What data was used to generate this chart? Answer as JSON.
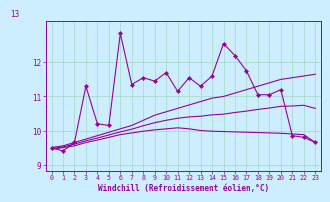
{
  "hours": [
    0,
    1,
    2,
    3,
    4,
    5,
    6,
    7,
    8,
    9,
    10,
    11,
    12,
    13,
    14,
    15,
    16,
    17,
    18,
    19,
    20,
    21,
    22,
    23
  ],
  "windchill": [
    9.5,
    9.4,
    9.65,
    11.3,
    10.2,
    10.15,
    12.85,
    11.35,
    11.55,
    11.45,
    11.7,
    11.15,
    11.55,
    11.3,
    11.6,
    12.55,
    12.2,
    11.75,
    11.05,
    11.05,
    11.2,
    9.85,
    9.8,
    9.65
  ],
  "trend_upper": [
    9.5,
    9.55,
    9.65,
    9.75,
    9.85,
    9.95,
    10.05,
    10.15,
    10.3,
    10.45,
    10.55,
    10.65,
    10.75,
    10.85,
    10.95,
    11.0,
    11.1,
    11.2,
    11.3,
    11.4,
    11.5,
    11.55,
    11.6,
    11.65
  ],
  "trend_lower": [
    9.45,
    9.5,
    9.55,
    9.65,
    9.72,
    9.8,
    9.88,
    9.93,
    9.98,
    10.02,
    10.05,
    10.08,
    10.05,
    10.0,
    9.98,
    9.97,
    9.96,
    9.95,
    9.94,
    9.93,
    9.92,
    9.9,
    9.88,
    9.65
  ],
  "trend_mid": [
    9.47,
    9.52,
    9.6,
    9.7,
    9.78,
    9.87,
    9.96,
    10.04,
    10.14,
    10.23,
    10.3,
    10.36,
    10.4,
    10.42,
    10.46,
    10.48,
    10.53,
    10.57,
    10.62,
    10.66,
    10.71,
    10.72,
    10.74,
    10.65
  ],
  "bg_color": "#cceeff",
  "line_color": "#990099",
  "grid_color": "#aaddcc",
  "xlabel": "Windchill (Refroidissement éolien,°C)",
  "ylim": [
    8.8,
    13.2
  ],
  "yticks": [
    9,
    10,
    11,
    12
  ],
  "xticks": [
    0,
    1,
    2,
    3,
    4,
    5,
    6,
    7,
    8,
    9,
    10,
    11,
    12,
    13,
    14,
    15,
    16,
    17,
    18,
    19,
    20,
    21,
    22,
    23
  ],
  "xlim": [
    -0.5,
    23.5
  ],
  "top_label": "13"
}
